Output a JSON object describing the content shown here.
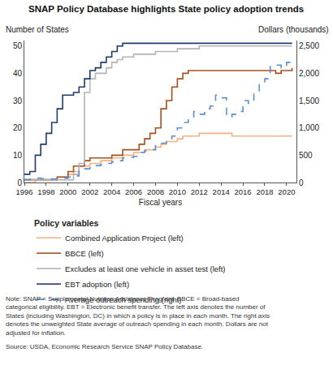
{
  "chart_data": {
    "type": "line",
    "title": "SNAP Policy Database highlights State policy adoption trends",
    "xlabel": "Fiscal years",
    "ylabel": "Number of States",
    "y2label": "Dollars (thousands)",
    "legend_title": "Policy variables",
    "legend": "bottom",
    "grid": false,
    "x": [
      1996,
      1996.5,
      1997,
      1997.5,
      1998,
      1998.5,
      1999,
      1999.5,
      2000,
      2000.5,
      2001,
      2001.5,
      2002,
      2002.5,
      2003,
      2003.5,
      2004,
      2004.5,
      2005,
      2005.5,
      2006,
      2006.5,
      2007,
      2007.5,
      2008,
      2008.5,
      2009,
      2009.5,
      2010,
      2010.5,
      2011,
      2011.5,
      2012,
      2012.5,
      2013,
      2013.5,
      2014,
      2014.5,
      2015,
      2015.5,
      2016,
      2016.5,
      2017,
      2017.5,
      2018,
      2018.5,
      2019,
      2019.5,
      2020,
      2020.5
    ],
    "xlim": [
      1996,
      2020.9
    ],
    "xticks": [
      1996,
      1998,
      2000,
      2002,
      2004,
      2006,
      2008,
      2010,
      2012,
      2014,
      2016,
      2018,
      2020
    ],
    "ylim": [
      0,
      52
    ],
    "yticks": [
      0,
      10,
      20,
      30,
      40,
      50
    ],
    "y2lim": [
      0,
      2600
    ],
    "y2ticks": [
      0,
      500,
      {
        "value": 1000,
        "label": "1,000"
      },
      {
        "value": 1500,
        "label": "1,500"
      },
      {
        "value": 2000,
        "label": "2,000"
      },
      {
        "value": 2500,
        "label": "2,500"
      }
    ],
    "series": [
      {
        "name": "Combined Application Project (left)",
        "color": "#f4b183",
        "axis": "y",
        "line_style": "solid",
        "values": [
          0,
          0,
          1,
          1,
          1,
          1,
          2,
          2,
          3,
          4,
          6,
          6,
          7,
          7,
          8,
          8,
          9,
          9,
          10,
          10,
          11,
          11,
          12,
          12,
          13,
          14,
          15,
          15,
          16,
          17,
          17,
          17,
          18,
          18,
          18,
          18,
          18,
          18,
          17,
          17,
          17,
          17,
          17,
          17,
          17,
          17,
          17,
          17,
          17,
          17
        ]
      },
      {
        "name": "BBCE (left)",
        "color": "#a5501e",
        "axis": "y",
        "line_style": "solid",
        "values": [
          1,
          1,
          1,
          1,
          1,
          1,
          2,
          2,
          4,
          6,
          6,
          8,
          9,
          9,
          9,
          9,
          10,
          10,
          12,
          12,
          12,
          14,
          16,
          18,
          20,
          27,
          30,
          35,
          38,
          40,
          41,
          41,
          41,
          41,
          41,
          41,
          41,
          41,
          41,
          41,
          41,
          41,
          41,
          41,
          41,
          41,
          40,
          41,
          41,
          42
        ]
      },
      {
        "name": "Excludes at least one vehicle in asset test (left)",
        "color": "#b4b4b4",
        "axis": "y",
        "line_style": "solid",
        "values": [
          1,
          1,
          1,
          1,
          1,
          1,
          1,
          1,
          1,
          3,
          7,
          33,
          38,
          40,
          40,
          42,
          44,
          45,
          46,
          46,
          47,
          47,
          47,
          47,
          48,
          48,
          48,
          48,
          49,
          49,
          49,
          49,
          50,
          50,
          50,
          50,
          50,
          50,
          50,
          50,
          50,
          50,
          50,
          50,
          50,
          50,
          50,
          50,
          50,
          50
        ]
      },
      {
        "name": "EBT adoption (left)",
        "color": "#1f3c6e",
        "axis": "y",
        "line_style": "solid",
        "values": [
          3,
          4,
          10,
          14,
          18,
          22,
          27,
          32,
          32,
          33,
          35,
          38,
          41,
          42,
          44,
          46,
          48,
          50,
          51,
          51,
          51,
          51,
          51,
          51,
          51,
          51,
          51,
          51,
          51,
          51,
          51,
          51,
          51,
          51,
          51,
          51,
          51,
          51,
          51,
          51,
          51,
          51,
          51,
          51,
          51,
          51,
          51,
          51,
          51,
          51
        ]
      },
      {
        "name": "Average outreach spending (right)",
        "color": "#5b8fd4",
        "axis": "y2",
        "line_style": "dashed",
        "values": [
          50,
          60,
          80,
          70,
          60,
          65,
          70,
          80,
          100,
          120,
          200,
          250,
          300,
          310,
          330,
          350,
          380,
          400,
          450,
          460,
          480,
          550,
          580,
          600,
          700,
          720,
          750,
          850,
          1000,
          1100,
          1200,
          1300,
          1250,
          1350,
          1400,
          1600,
          1550,
          1200,
          1250,
          1300,
          1500,
          1450,
          1650,
          1800,
          1900,
          2150,
          2150,
          2100,
          2200,
          2200
        ]
      }
    ],
    "note": [
      "Note: SNAP = Supplemental Nutrition Assistance Program. BBCE = Broad-based",
      "categorical eligibility. EBT = Electronic benefit transfer. The left axis denotes the number of",
      "States (including Washington, DC) in which a policy is in place in each month. The right axis",
      "denotes the unweighted State average of outreach spending in each month. Dollars are not",
      "adjusted for inflation."
    ],
    "source": "Source: USDA, Economic Research Service SNAP Policy Database."
  }
}
